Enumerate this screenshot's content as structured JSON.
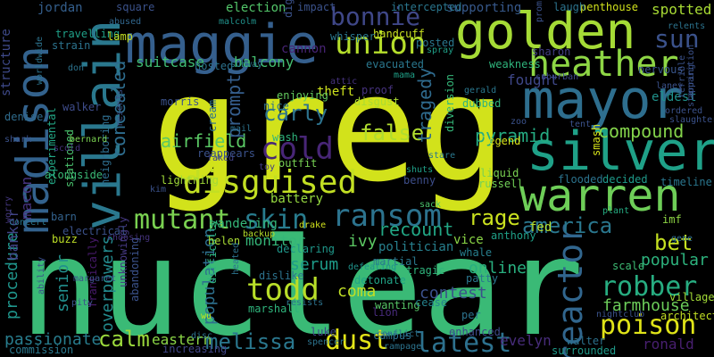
{
  "words": [
    {
      "text": "greg",
      "color": "#d2e21b",
      "vertical": false
    },
    {
      "text": "nuclear",
      "color": "#3aba76",
      "vertical": false
    },
    {
      "text": "golden",
      "color": "#a5db36",
      "vertical": false
    },
    {
      "text": "maggie",
      "color": "#355f8d",
      "vertical": false
    },
    {
      "text": "mayor",
      "color": "#2e6e8e",
      "vertical": false
    },
    {
      "text": "silver",
      "color": "#1fa188",
      "vertical": false
    },
    {
      "text": "warren",
      "color": "#6ece58",
      "vertical": false
    },
    {
      "text": "villain",
      "color": "#2a788e",
      "vertical": true
    },
    {
      "text": "madison",
      "color": "#33628d",
      "vertical": true
    },
    {
      "text": "heather",
      "color": "#8ed645",
      "vertical": false
    },
    {
      "text": "disguised",
      "color": "#c2df23",
      "vertical": false
    },
    {
      "text": "union",
      "color": "#b5de2b",
      "vertical": false
    },
    {
      "text": "bonnie",
      "color": "#3f4788",
      "vertical": false
    },
    {
      "text": "sun",
      "color": "#3b528b",
      "vertical": false
    },
    {
      "text": "cold",
      "color": "#482677",
      "vertical": false
    },
    {
      "text": "ransom",
      "color": "#2c738e",
      "vertical": false
    },
    {
      "text": "mutant",
      "color": "#7ad151",
      "vertical": false
    },
    {
      "text": "skin",
      "color": "#287c8e",
      "vertical": false
    },
    {
      "text": "todd",
      "color": "#b8de29",
      "vertical": false
    },
    {
      "text": "reactor",
      "color": "#31668e",
      "vertical": true
    },
    {
      "text": "poison",
      "color": "#dfe318",
      "vertical": false
    },
    {
      "text": "robber",
      "color": "#27ad81",
      "vertical": false
    },
    {
      "text": "latest",
      "color": "#2d718e",
      "vertical": false
    },
    {
      "text": "dust",
      "color": "#e2e418",
      "vertical": false
    },
    {
      "text": "melissa",
      "color": "#2a778e",
      "vertical": false
    },
    {
      "text": "calm",
      "color": "#9bd93c",
      "vertical": false
    },
    {
      "text": "america",
      "color": "#2a778e",
      "vertical": false
    },
    {
      "text": "rage",
      "color": "#cae11f",
      "vertical": false
    },
    {
      "text": "bet",
      "color": "#c5e021",
      "vertical": false
    },
    {
      "text": "carly",
      "color": "#2c728e",
      "vertical": false
    },
    {
      "text": "false",
      "color": "#b0dd2f",
      "vertical": false
    },
    {
      "text": "pyramid",
      "color": "#25ab82",
      "vertical": false
    },
    {
      "text": "compound",
      "color": "#84d44b",
      "vertical": false
    },
    {
      "text": "airfield",
      "color": "#5ac864",
      "vertical": false
    },
    {
      "text": "concealed",
      "color": "#2e6d8e",
      "vertical": true
    },
    {
      "text": "prompt",
      "color": "#355e8d",
      "vertical": true
    },
    {
      "text": "tragedy",
      "color": "#2f6b8e",
      "vertical": true
    },
    {
      "text": "recount",
      "color": "#22a785",
      "vertical": false
    },
    {
      "text": "monitor",
      "color": "#35b779",
      "vertical": false
    },
    {
      "text": "serum",
      "color": "#1e9c89",
      "vertical": false
    },
    {
      "text": "ivy",
      "color": "#5cc863",
      "vertical": false
    },
    {
      "text": "coma",
      "color": "#c0df25",
      "vertical": false
    },
    {
      "text": "contest",
      "color": "#3b518b",
      "vertical": false
    },
    {
      "text": "online",
      "color": "#29af7f",
      "vertical": false
    },
    {
      "text": "popular",
      "color": "#2db27d",
      "vertical": false
    },
    {
      "text": "farmhouse",
      "color": "#6ccd5a",
      "vertical": false
    },
    {
      "text": "population",
      "color": "#2d708e",
      "vertical": true
    },
    {
      "text": "overpowers",
      "color": "#238a8d",
      "vertical": true
    },
    {
      "text": "passionate",
      "color": "#287d8e",
      "vertical": false
    },
    {
      "text": "procedure",
      "color": "#1f958b",
      "vertical": true
    },
    {
      "text": "senior",
      "color": "#218f8d",
      "vertical": true
    },
    {
      "text": "eastern",
      "color": "#8bd646",
      "vertical": false
    },
    {
      "text": "evelyn",
      "color": "#472c7a",
      "vertical": false
    },
    {
      "text": "ronald",
      "color": "#481f70",
      "vertical": false
    },
    {
      "text": "banker",
      "color": "#414487",
      "vertical": true
    },
    {
      "text": "macon",
      "color": "#46337e",
      "vertical": true
    },
    {
      "text": "suitcase",
      "color": "#3fbc73",
      "vertical": false
    },
    {
      "text": "balcony",
      "color": "#44bf70",
      "vertical": false
    },
    {
      "text": "fought",
      "color": "#3f4889",
      "vertical": false
    },
    {
      "text": "spotted",
      "color": "#a8db34",
      "vertical": false
    },
    {
      "text": "supporting",
      "color": "#37598c",
      "vertical": false
    },
    {
      "text": "election",
      "color": "#52c569",
      "vertical": false
    },
    {
      "text": "jordan",
      "color": "#345f8d",
      "vertical": false
    },
    {
      "text": "structure",
      "color": "#3e4989",
      "vertical": true
    },
    {
      "text": "penthouse",
      "color": "#d0e11c",
      "vertical": false
    },
    {
      "text": "sharon",
      "color": "#433e85",
      "vertical": false
    },
    {
      "text": "nervous",
      "color": "#39568c",
      "vertical": false
    },
    {
      "text": "eldest",
      "color": "#20928c",
      "vertical": false
    },
    {
      "text": "theft",
      "color": "#cde11d",
      "vertical": false
    },
    {
      "text": "enjoying",
      "color": "#63cb5f",
      "vertical": false
    },
    {
      "text": "disgust",
      "color": "#aadc32",
      "vertical": false
    },
    {
      "text": "proof",
      "color": "#46327e",
      "vertical": false
    },
    {
      "text": "battery",
      "color": "#95d840",
      "vertical": false
    },
    {
      "text": "outfit",
      "color": "#77d153",
      "vertical": false
    },
    {
      "text": "wandering",
      "color": "#35b779",
      "vertical": false
    },
    {
      "text": "politician",
      "color": "#27808e",
      "vertical": false
    },
    {
      "text": "vice",
      "color": "#8bd646",
      "vertical": false
    },
    {
      "text": "fed",
      "color": "#b5de2b",
      "vertical": false
    },
    {
      "text": "benny",
      "color": "#3d4e8a",
      "vertical": false
    },
    {
      "text": "russell",
      "color": "#71cf57",
      "vertical": false
    },
    {
      "text": "liquid",
      "color": "#7ad151",
      "vertical": false
    },
    {
      "text": "legend",
      "color": "#d8e219",
      "vertical": false
    },
    {
      "text": "smash",
      "color": "#d5e21a",
      "vertical": true
    },
    {
      "text": "handcuff",
      "color": "#c8e020",
      "vertical": false
    },
    {
      "text": "cannon",
      "color": "#482475",
      "vertical": false
    },
    {
      "text": "dubbed",
      "color": "#2fb47c",
      "vertical": false
    },
    {
      "text": "diversion",
      "color": "#35b779",
      "vertical": true
    },
    {
      "text": "posted",
      "color": "#2a778e",
      "vertical": false
    },
    {
      "text": "evacuated",
      "color": "#2a778e",
      "vertical": false
    },
    {
      "text": "weakness",
      "color": "#2fb47c",
      "vertical": false
    },
    {
      "text": "flooded",
      "color": "#2c738e",
      "vertical": false
    },
    {
      "text": "decided",
      "color": "#1f9a8a",
      "vertical": false
    },
    {
      "text": "timeline",
      "color": "#2a768e",
      "vertical": false
    },
    {
      "text": "denise",
      "color": "#2f6c8e",
      "vertical": false
    },
    {
      "text": "walker",
      "color": "#3e4c8a",
      "vertical": false
    },
    {
      "text": "morris",
      "color": "#3b528b",
      "vertical": false
    },
    {
      "text": "cream",
      "color": "#2d708e",
      "vertical": true
    },
    {
      "text": "alongside",
      "color": "#3aba76",
      "vertical": false
    },
    {
      "text": "lightning",
      "color": "#a0da39",
      "vertical": false
    },
    {
      "text": "experimental",
      "color": "#22a785",
      "vertical": true
    },
    {
      "text": "stationed",
      "color": "#4ac16d",
      "vertical": true
    },
    {
      "text": "neighboring",
      "color": "#2e6d8e",
      "vertical": true
    },
    {
      "text": "abandoning",
      "color": "#3b528b",
      "vertical": true
    },
    {
      "text": "unknowingly",
      "color": "#453882",
      "vertical": true
    },
    {
      "text": "frantically",
      "color": "#481a6c",
      "vertical": true
    },
    {
      "text": "difficulty",
      "color": "#2fb47c",
      "vertical": true
    },
    {
      "text": "declaring",
      "color": "#1f988b",
      "vertical": false
    },
    {
      "text": "dislike",
      "color": "#2c738e",
      "vertical": false
    },
    {
      "text": "marshall",
      "color": "#2fb47c",
      "vertical": false
    },
    {
      "text": "martial",
      "color": "#2a788e",
      "vertical": false
    },
    {
      "text": "detonate",
      "color": "#20a386",
      "vertical": false
    },
    {
      "text": "wanting",
      "color": "#56c667",
      "vertical": false
    },
    {
      "text": "campus",
      "color": "#2d718e",
      "vertical": false
    },
    {
      "text": "enhanced",
      "color": "#3e4989",
      "vertical": false
    },
    {
      "text": "increasing",
      "color": "#404688",
      "vertical": false
    },
    {
      "text": "commission",
      "color": "#2a788e",
      "vertical": false
    },
    {
      "text": "surrounded",
      "color": "#1f9a8a",
      "vertical": false
    },
    {
      "text": "walter",
      "color": "#2c728e",
      "vertical": false
    },
    {
      "text": "architect",
      "color": "#c2df23",
      "vertical": false
    },
    {
      "text": "villager",
      "color": "#a2da37",
      "vertical": false
    },
    {
      "text": "scale",
      "color": "#3dbc74",
      "vertical": false
    },
    {
      "text": "anthony",
      "color": "#1fa088",
      "vertical": false
    },
    {
      "text": "whale",
      "color": "#277f8e",
      "vertical": false
    },
    {
      "text": "tragic",
      "color": "#2fb47c",
      "vertical": false
    },
    {
      "text": "patty",
      "color": "#2a768e",
      "vertical": false
    },
    {
      "text": "cease",
      "color": "#25838e",
      "vertical": false
    },
    {
      "text": "per",
      "color": "#2c728e",
      "vertical": false
    },
    {
      "text": "luke",
      "color": "#3f4788",
      "vertical": false
    },
    {
      "text": "lion",
      "color": "#472a7a",
      "vertical": false
    },
    {
      "text": "helen",
      "color": "#a8db34",
      "vertical": false
    },
    {
      "text": "backup",
      "color": "#b5de2b",
      "vertical": false
    },
    {
      "text": "drake",
      "color": "#d0e11c",
      "vertical": false
    },
    {
      "text": "sack",
      "color": "#4ac16d",
      "vertical": false
    },
    {
      "text": "defeating",
      "color": "#1f948c",
      "vertical": false
    },
    {
      "text": "plant",
      "color": "#25ac82",
      "vertical": false
    },
    {
      "text": "imf",
      "color": "#8ed645",
      "vertical": false
    },
    {
      "text": "gene",
      "color": "#2e6e8e",
      "vertical": false
    },
    {
      "text": "buzz",
      "color": "#bddf26",
      "vertical": false
    },
    {
      "text": "electrical",
      "color": "#3b528b",
      "vertical": false
    },
    {
      "text": "concert",
      "color": "#2a778e",
      "vertical": false
    },
    {
      "text": "barn",
      "color": "#33628d",
      "vertical": false
    },
    {
      "text": "bernard",
      "color": "#7ad151",
      "vertical": false
    },
    {
      "text": "scold",
      "color": "#46337e",
      "vertical": false
    },
    {
      "text": "shark",
      "color": "#3b528b",
      "vertical": false
    },
    {
      "text": "toy",
      "color": "#433e85",
      "vertical": false
    },
    {
      "text": "faked",
      "color": "#424186",
      "vertical": false
    },
    {
      "text": "shuts",
      "color": "#1fa088",
      "vertical": false
    },
    {
      "text": "stare",
      "color": "#2a788e",
      "vertical": false
    },
    {
      "text": "wash",
      "color": "#2fb47c",
      "vertical": false
    },
    {
      "text": "nice",
      "color": "#2d708e",
      "vertical": false
    },
    {
      "text": "mail",
      "color": "#2c738e",
      "vertical": false
    },
    {
      "text": "hosted",
      "color": "#2c728e",
      "vertical": false
    },
    {
      "text": "don",
      "color": "#2c738e",
      "vertical": false
    },
    {
      "text": "travelling",
      "color": "#1fa088",
      "vertical": false
    },
    {
      "text": "strain",
      "color": "#2c738e",
      "vertical": false
    },
    {
      "text": "lamp",
      "color": "#c2df23",
      "vertical": false
    },
    {
      "text": "abused",
      "color": "#31678e",
      "vertical": false
    },
    {
      "text": "malcolm",
      "color": "#20928c",
      "vertical": false
    },
    {
      "text": "square",
      "color": "#3b528b",
      "vertical": false
    },
    {
      "text": "impact",
      "color": "#3b528b",
      "vertical": false
    },
    {
      "text": "digging",
      "color": "#3b528b",
      "vertical": true
    },
    {
      "text": "whisper",
      "color": "#2a778e",
      "vertical": false
    },
    {
      "text": "intercepted",
      "color": "#2a768e",
      "vertical": false
    },
    {
      "text": "laugh",
      "color": "#2c738e",
      "vertical": false
    },
    {
      "text": "prom",
      "color": "#3b528b",
      "vertical": true
    },
    {
      "text": "relents",
      "color": "#2c738e",
      "vertical": false
    },
    {
      "text": "laney",
      "color": "#3b528b",
      "vertical": false
    },
    {
      "text": "spray",
      "color": "#1fa088",
      "vertical": false
    },
    {
      "text": "mama",
      "color": "#1fa088",
      "vertical": false
    },
    {
      "text": "suburban",
      "color": "#3e4989",
      "vertical": false
    },
    {
      "text": "zoo",
      "color": "#3b528b",
      "vertical": false
    },
    {
      "text": "tent",
      "color": "#3b528b",
      "vertical": false
    },
    {
      "text": "worldwide",
      "color": "#2c738e",
      "vertical": true
    },
    {
      "text": "subway",
      "color": "#2a778e",
      "vertical": false
    },
    {
      "text": "attic",
      "color": "#46337e",
      "vertical": false
    },
    {
      "text": "gerald",
      "color": "#2a778e",
      "vertical": false
    },
    {
      "text": "resents",
      "color": "#3b528b",
      "vertical": true
    },
    {
      "text": "reappears",
      "color": "#3b528b",
      "vertical": false
    },
    {
      "text": "kim",
      "color": "#3b528b",
      "vertical": false
    },
    {
      "text": "worry",
      "color": "#453882",
      "vertical": true
    },
    {
      "text": "choosing",
      "color": "#46337e",
      "vertical": false
    },
    {
      "text": "margaret",
      "color": "#3b528b",
      "vertical": false
    },
    {
      "text": "pity",
      "color": "#3b528b",
      "vertical": false
    },
    {
      "text": "ability",
      "color": "#3b528b",
      "vertical": true
    },
    {
      "text": "resists",
      "color": "#2c738e",
      "vertical": false
    },
    {
      "text": "conflict",
      "color": "#2c738e",
      "vertical": false
    },
    {
      "text": "rampage",
      "color": "#2c738e",
      "vertical": false
    },
    {
      "text": "spencer",
      "color": "#2c738e",
      "vertical": false
    },
    {
      "text": "disc",
      "color": "#2c738e",
      "vertical": false
    },
    {
      "text": "heated",
      "color": "#2c738e",
      "vertical": true
    },
    {
      "text": "wu",
      "color": "#c2df23",
      "vertical": false
    },
    {
      "text": "nightclub",
      "color": "#3b528b",
      "vertical": false
    },
    {
      "text": "terrible",
      "color": "#3b528b",
      "vertical": true
    },
    {
      "text": "apparition",
      "color": "#3b528b",
      "vertical": true
    },
    {
      "text": "starring",
      "color": "#3b528b",
      "vertical": true
    },
    {
      "text": "ordered",
      "color": "#3b528b",
      "vertical": false
    },
    {
      "text": "slaughter",
      "color": "#3b528b",
      "vertical": false
    }
  ]
}
